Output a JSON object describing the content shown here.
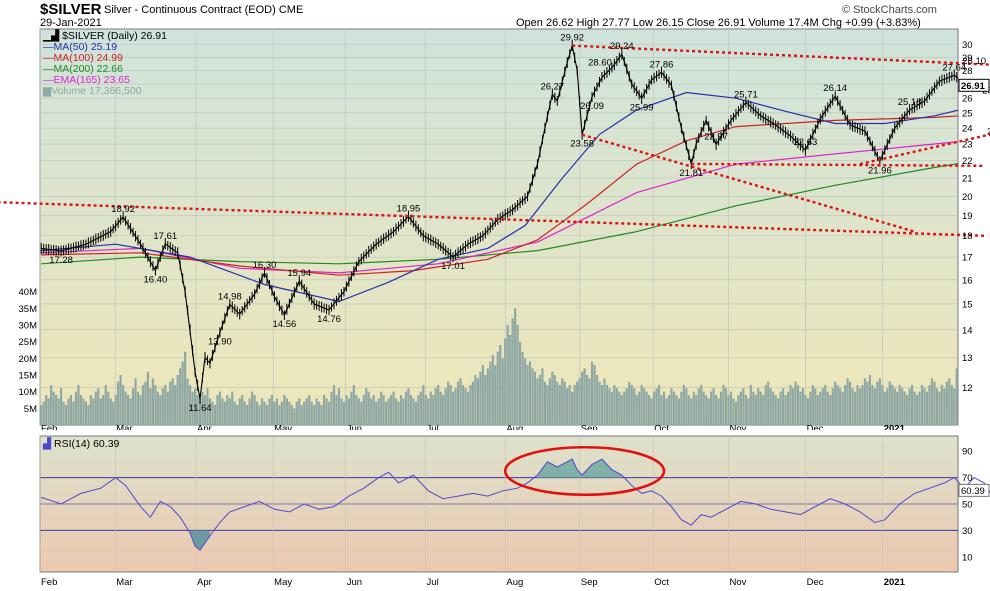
{
  "header": {
    "symbol": "$SILVER",
    "title": "Silver - Continuous Contract (EOD)",
    "exchange": "CME",
    "date": "29-Jan-2021",
    "quote": "Open 26.62  High 27.77  Low 26.15  Close 26.91  Volume 17.4M  Chg +0.99 (+3.83%)",
    "copyright": "© StockCharts.com"
  },
  "legend": {
    "price": "$SILVER (Daily) 26.91",
    "ma50": "MA(50) 25.19",
    "ma100": "MA(100) 24.99",
    "ma200": "MA(200) 22.66",
    "ema165": "EMA(165) 23.65",
    "volume": "Volume 17,366,500",
    "rsi": "RSI(14) 60.39"
  },
  "colors": {
    "price": "#000000",
    "ma50": "#2233aa",
    "ma100": "#cc2222",
    "ma200": "#228822",
    "ema165": "#dd22cc",
    "volume": "#8fa8a4",
    "rsi": "#4a4acc",
    "trendline": "#dd1111",
    "rsi_circle": "#e01010",
    "price_bg_top": "#cfe3db",
    "price_bg_bottom": "#efe6b8",
    "rsi_bg_top": "#dde2cc",
    "rsi_bg_bottom": "#ecc8b0"
  },
  "chart_data": {
    "type": "line",
    "x_labels": [
      "Feb",
      "Mar",
      "Apr",
      "May",
      "Jun",
      "Jul",
      "Aug",
      "Sep",
      "Oct",
      "Nov",
      "Dec",
      "2021"
    ],
    "y_ticks": [
      12,
      13,
      14,
      15,
      16,
      17,
      18,
      19,
      20,
      21,
      22,
      23,
      24,
      25,
      26,
      27,
      28,
      29,
      30
    ],
    "ylim": [
      11,
      30.7
    ],
    "volume_ticks": [
      "5M",
      "10M",
      "15M",
      "20M",
      "25M",
      "30M",
      "35M",
      "40M"
    ],
    "volume_max": 45,
    "price_points": [
      [
        0,
        17.4
      ],
      [
        8,
        17.28
      ],
      [
        18,
        17.6
      ],
      [
        28,
        18.2
      ],
      [
        33,
        18.92
      ],
      [
        40,
        17.6
      ],
      [
        46,
        16.4
      ],
      [
        50,
        17.61
      ],
      [
        55,
        17.2
      ],
      [
        58,
        15.5
      ],
      [
        62,
        12.5
      ],
      [
        64,
        11.64
      ],
      [
        66,
        13.0
      ],
      [
        68,
        12.8
      ],
      [
        72,
        13.9
      ],
      [
        76,
        14.98
      ],
      [
        80,
        14.6
      ],
      [
        86,
        15.4
      ],
      [
        90,
        16.3
      ],
      [
        94,
        15.3
      ],
      [
        98,
        14.56
      ],
      [
        104,
        15.94
      ],
      [
        110,
        15.0
      ],
      [
        116,
        14.76
      ],
      [
        122,
        15.5
      ],
      [
        128,
        16.8
      ],
      [
        135,
        17.6
      ],
      [
        142,
        18.2
      ],
      [
        148,
        18.95
      ],
      [
        154,
        18.0
      ],
      [
        160,
        17.6
      ],
      [
        166,
        17.01
      ],
      [
        172,
        17.6
      ],
      [
        178,
        18.0
      ],
      [
        184,
        18.8
      ],
      [
        190,
        19.3
      ],
      [
        196,
        20.0
      ],
      [
        200,
        21.8
      ],
      [
        203,
        24.0
      ],
      [
        206,
        26.27
      ],
      [
        208,
        25.8
      ],
      [
        212,
        28.6
      ],
      [
        214,
        29.92
      ],
      [
        216,
        28.0
      ],
      [
        218,
        23.58
      ],
      [
        222,
        26.09
      ],
      [
        226,
        27.5
      ],
      [
        230,
        28.2
      ],
      [
        234,
        29.24
      ],
      [
        238,
        27.0
      ],
      [
        242,
        25.99
      ],
      [
        246,
        27.3
      ],
      [
        250,
        27.86
      ],
      [
        254,
        26.9
      ],
      [
        258,
        24.0
      ],
      [
        262,
        21.81
      ],
      [
        264,
        23.0
      ],
      [
        268,
        24.5
      ],
      [
        272,
        22.97
      ],
      [
        278,
        24.5
      ],
      [
        284,
        25.71
      ],
      [
        290,
        24.8
      ],
      [
        296,
        24.2
      ],
      [
        302,
        23.5
      ],
      [
        308,
        22.63
      ],
      [
        314,
        24.6
      ],
      [
        320,
        26.14
      ],
      [
        326,
        24.2
      ],
      [
        332,
        23.8
      ],
      [
        338,
        21.96
      ],
      [
        344,
        24.0
      ],
      [
        350,
        25.18
      ],
      [
        356,
        25.8
      ],
      [
        362,
        27.2
      ],
      [
        368,
        27.64
      ],
      [
        372,
        27.1
      ],
      [
        376,
        28.1
      ],
      [
        380,
        27.6
      ],
      [
        384,
        25.99
      ],
      [
        386,
        24.36
      ],
      [
        390,
        25.6
      ],
      [
        396,
        25.1
      ],
      [
        400,
        25.9
      ],
      [
        404,
        26.91
      ]
    ],
    "price_labels": [
      {
        "i": 8,
        "v": 17.28,
        "text": "17.28",
        "pos": "below"
      },
      {
        "i": 33,
        "v": 18.92,
        "text": "18.92",
        "pos": "above"
      },
      {
        "i": 46,
        "v": 16.4,
        "text": "16.40",
        "pos": "below"
      },
      {
        "i": 50,
        "v": 17.61,
        "text": "17.61",
        "pos": "above"
      },
      {
        "i": 64,
        "v": 11.64,
        "text": "11.64",
        "pos": "below"
      },
      {
        "i": 72,
        "v": 13.9,
        "text": "13.90",
        "pos": "below"
      },
      {
        "i": 76,
        "v": 14.98,
        "text": "14.98",
        "pos": "above"
      },
      {
        "i": 90,
        "v": 16.3,
        "text": "16.30",
        "pos": "above"
      },
      {
        "i": 98,
        "v": 14.56,
        "text": "14.56",
        "pos": "below"
      },
      {
        "i": 104,
        "v": 15.94,
        "text": "15.94",
        "pos": "above"
      },
      {
        "i": 116,
        "v": 14.76,
        "text": "14.76",
        "pos": "below"
      },
      {
        "i": 148,
        "v": 18.95,
        "text": "18.95",
        "pos": "above"
      },
      {
        "i": 166,
        "v": 17.01,
        "text": "17.01",
        "pos": "below"
      },
      {
        "i": 206,
        "v": 26.27,
        "text": "26.27",
        "pos": "above"
      },
      {
        "i": 214,
        "v": 29.92,
        "text": "29.92",
        "pos": "above"
      },
      {
        "i": 218,
        "v": 28.6,
        "text": "28.60",
        "pos": "right"
      },
      {
        "i": 218,
        "v": 23.58,
        "text": "23.58",
        "pos": "below"
      },
      {
        "i": 222,
        "v": 26.09,
        "text": "26.09",
        "pos": "below"
      },
      {
        "i": 234,
        "v": 29.24,
        "text": "29.24",
        "pos": "above"
      },
      {
        "i": 242,
        "v": 25.99,
        "text": "25.99",
        "pos": "below"
      },
      {
        "i": 250,
        "v": 27.86,
        "text": "27.86",
        "pos": "above"
      },
      {
        "i": 262,
        "v": 21.81,
        "text": "21.81",
        "pos": "below"
      },
      {
        "i": 272,
        "v": 22.97,
        "text": "22.97",
        "pos": "above"
      },
      {
        "i": 284,
        "v": 25.71,
        "text": "25.71",
        "pos": "above"
      },
      {
        "i": 308,
        "v": 22.63,
        "text": "22.63",
        "pos": "above"
      },
      {
        "i": 320,
        "v": 26.14,
        "text": "26.14",
        "pos": "above"
      },
      {
        "i": 338,
        "v": 21.96,
        "text": "21.96",
        "pos": "below"
      },
      {
        "i": 350,
        "v": 25.18,
        "text": "25.18",
        "pos": "above"
      },
      {
        "i": 368,
        "v": 27.64,
        "text": "27.64",
        "pos": "above"
      },
      {
        "i": 376,
        "v": 28.1,
        "text": "28.10",
        "pos": "above"
      },
      {
        "i": 384,
        "v": 25.99,
        "text": "25.99",
        "pos": "above"
      },
      {
        "i": 386,
        "v": 24.36,
        "text": "24.36",
        "pos": "below"
      }
    ],
    "ma50_points": [
      [
        0,
        17.3
      ],
      [
        30,
        17.6
      ],
      [
        60,
        17.0
      ],
      [
        90,
        15.8
      ],
      [
        120,
        15.1
      ],
      [
        140,
        15.9
      ],
      [
        160,
        16.9
      ],
      [
        180,
        17.4
      ],
      [
        195,
        18.5
      ],
      [
        210,
        21.0
      ],
      [
        225,
        23.6
      ],
      [
        240,
        25.2
      ],
      [
        260,
        26.4
      ],
      [
        280,
        26.0
      ],
      [
        300,
        25.1
      ],
      [
        320,
        24.3
      ],
      [
        340,
        24.3
      ],
      [
        360,
        24.8
      ],
      [
        380,
        25.6
      ],
      [
        404,
        25.19
      ]
    ],
    "ma100_points": [
      [
        0,
        17.1
      ],
      [
        40,
        17.2
      ],
      [
        80,
        16.6
      ],
      [
        120,
        16.2
      ],
      [
        150,
        16.4
      ],
      [
        180,
        16.9
      ],
      [
        200,
        17.8
      ],
      [
        220,
        19.6
      ],
      [
        240,
        21.8
      ],
      [
        260,
        23.2
      ],
      [
        280,
        24.1
      ],
      [
        300,
        24.3
      ],
      [
        320,
        24.5
      ],
      [
        340,
        24.6
      ],
      [
        360,
        24.7
      ],
      [
        380,
        24.9
      ],
      [
        404,
        24.99
      ]
    ],
    "ma200_points": [
      [
        0,
        16.7
      ],
      [
        40,
        17.0
      ],
      [
        80,
        16.8
      ],
      [
        120,
        16.7
      ],
      [
        160,
        16.9
      ],
      [
        200,
        17.3
      ],
      [
        240,
        18.2
      ],
      [
        280,
        19.5
      ],
      [
        320,
        20.6
      ],
      [
        360,
        21.6
      ],
      [
        404,
        22.66
      ]
    ],
    "ema165_points": [
      [
        0,
        17.2
      ],
      [
        40,
        17.4
      ],
      [
        80,
        16.5
      ],
      [
        120,
        16.3
      ],
      [
        160,
        16.7
      ],
      [
        200,
        17.7
      ],
      [
        240,
        20.2
      ],
      [
        280,
        21.8
      ],
      [
        320,
        22.4
      ],
      [
        360,
        23.0
      ],
      [
        404,
        23.65
      ]
    ],
    "volume_values": [
      6,
      7,
      9,
      8,
      12,
      10,
      9,
      8,
      11,
      7,
      6,
      8,
      9,
      7,
      10,
      12,
      9,
      8,
      7,
      6,
      9,
      8,
      10,
      11,
      8,
      9,
      12,
      10,
      8,
      7,
      9,
      13,
      15,
      12,
      10,
      9,
      8,
      11,
      14,
      10,
      9,
      12,
      13,
      16,
      11,
      14,
      12,
      10,
      9,
      11,
      12,
      10,
      13,
      14,
      12,
      15,
      17,
      19,
      22,
      14,
      12,
      10,
      11,
      9,
      8,
      10,
      9,
      11,
      8,
      7,
      6,
      9,
      10,
      8,
      7,
      9,
      8,
      10,
      7,
      6,
      8,
      9,
      7,
      6,
      8,
      10,
      9,
      7,
      6,
      8,
      7,
      6,
      8,
      9,
      7,
      8,
      6,
      7,
      9,
      8,
      7,
      6,
      5,
      7,
      8,
      6,
      7,
      8,
      9,
      7,
      6,
      8,
      7,
      6,
      9,
      8,
      7,
      10,
      12,
      9,
      11,
      8,
      7,
      9,
      8,
      10,
      12,
      9,
      8,
      7,
      9,
      11,
      10,
      8,
      9,
      7,
      8,
      10,
      9,
      7,
      8,
      9,
      10,
      8,
      7,
      9,
      8,
      10,
      11,
      9,
      8,
      7,
      9,
      10,
      12,
      9,
      8,
      10,
      9,
      11,
      12,
      10,
      9,
      11,
      13,
      12,
      10,
      11,
      13,
      14,
      12,
      11,
      10,
      12,
      13,
      15,
      14,
      16,
      18,
      15,
      17,
      19,
      21,
      18,
      22,
      24,
      20,
      26,
      30,
      27,
      32,
      35,
      30,
      25,
      22,
      20,
      18,
      19,
      17,
      16,
      14,
      15,
      17,
      13,
      12,
      14,
      16,
      15,
      13,
      12,
      14,
      13,
      11,
      12,
      10,
      12,
      13,
      14,
      16,
      17,
      15,
      14,
      19,
      18,
      15,
      13,
      12,
      14,
      12,
      11,
      10,
      12,
      11,
      10,
      9,
      10,
      11,
      13,
      12,
      11,
      9,
      10,
      12,
      11,
      10,
      9,
      8,
      10,
      11,
      12,
      9,
      10,
      8,
      9,
      11,
      10,
      9,
      8,
      10,
      12,
      11,
      9,
      8,
      10,
      9,
      11,
      12,
      10,
      9,
      8,
      10,
      11,
      9,
      8,
      10,
      12,
      11,
      9,
      10,
      8,
      7,
      9,
      10,
      11,
      9,
      8,
      12,
      10,
      9,
      11,
      10,
      9,
      12,
      13,
      11,
      10,
      9,
      8,
      10,
      11,
      9,
      10,
      12,
      11,
      13,
      12,
      10,
      11,
      9,
      8,
      10,
      12,
      11,
      9,
      10,
      11,
      12,
      10,
      9,
      11,
      13,
      12,
      11,
      10,
      12,
      14,
      13,
      11,
      10,
      12,
      11,
      12,
      14,
      13,
      15,
      12,
      11,
      13,
      14,
      12,
      10,
      11,
      13,
      12,
      11,
      10,
      12,
      11,
      10,
      9,
      11,
      12,
      10,
      9,
      10,
      12,
      11,
      10,
      12,
      14,
      13,
      11,
      10,
      12,
      11,
      13,
      14,
      12,
      11,
      17
    ],
    "trendlines": [
      {
        "name": "upper-resistance",
        "from": [
          214,
          29.92
        ],
        "to": [
          410,
          28.2
        ]
      },
      {
        "name": "lower-falling",
        "from": [
          218,
          23.58
        ],
        "to": [
          352,
          18.2
        ]
      },
      {
        "name": "rising-support",
        "from": [
          330,
          21.8
        ],
        "to": [
          410,
          24.6
        ]
      },
      {
        "name": "horizontal-support",
        "from": [
          262,
          21.81
        ],
        "to": [
          380,
          21.7
        ]
      },
      {
        "name": "long-falling",
        "from": [
          -20,
          19.7
        ],
        "to": [
          380,
          18.0
        ]
      }
    ],
    "rsi_ticks": [
      10,
      30,
      50,
      70,
      90
    ],
    "rsi_lines": [
      30,
      50,
      70
    ],
    "rsi_last": "60.39",
    "rsi_points": [
      [
        0,
        55
      ],
      [
        8,
        50
      ],
      [
        16,
        58
      ],
      [
        24,
        62
      ],
      [
        30,
        70
      ],
      [
        34,
        64
      ],
      [
        40,
        48
      ],
      [
        44,
        40
      ],
      [
        48,
        52
      ],
      [
        52,
        48
      ],
      [
        56,
        40
      ],
      [
        60,
        28
      ],
      [
        62,
        18
      ],
      [
        64,
        15
      ],
      [
        68,
        26
      ],
      [
        72,
        36
      ],
      [
        76,
        44
      ],
      [
        82,
        48
      ],
      [
        88,
        52
      ],
      [
        94,
        46
      ],
      [
        100,
        44
      ],
      [
        106,
        50
      ],
      [
        112,
        46
      ],
      [
        118,
        48
      ],
      [
        124,
        56
      ],
      [
        130,
        62
      ],
      [
        136,
        70
      ],
      [
        140,
        74
      ],
      [
        144,
        66
      ],
      [
        150,
        72
      ],
      [
        156,
        60
      ],
      [
        162,
        54
      ],
      [
        168,
        56
      ],
      [
        174,
        58
      ],
      [
        180,
        56
      ],
      [
        186,
        60
      ],
      [
        192,
        62
      ],
      [
        196,
        66
      ],
      [
        200,
        72
      ],
      [
        204,
        82
      ],
      [
        208,
        78
      ],
      [
        212,
        82
      ],
      [
        214,
        84
      ],
      [
        216,
        76
      ],
      [
        218,
        72
      ],
      [
        222,
        80
      ],
      [
        226,
        84
      ],
      [
        230,
        76
      ],
      [
        234,
        72
      ],
      [
        238,
        64
      ],
      [
        242,
        58
      ],
      [
        246,
        60
      ],
      [
        250,
        56
      ],
      [
        254,
        48
      ],
      [
        258,
        38
      ],
      [
        262,
        34
      ],
      [
        266,
        42
      ],
      [
        270,
        40
      ],
      [
        276,
        46
      ],
      [
        282,
        52
      ],
      [
        288,
        50
      ],
      [
        294,
        46
      ],
      [
        300,
        44
      ],
      [
        306,
        42
      ],
      [
        312,
        48
      ],
      [
        318,
        54
      ],
      [
        324,
        50
      ],
      [
        330,
        44
      ],
      [
        336,
        36
      ],
      [
        340,
        38
      ],
      [
        346,
        50
      ],
      [
        352,
        58
      ],
      [
        358,
        62
      ],
      [
        364,
        66
      ],
      [
        368,
        70
      ],
      [
        372,
        62
      ],
      [
        376,
        70
      ],
      [
        380,
        66
      ],
      [
        384,
        54
      ],
      [
        386,
        44
      ],
      [
        390,
        52
      ],
      [
        396,
        50
      ],
      [
        400,
        54
      ],
      [
        404,
        60.39
      ]
    ],
    "rsi_ellipse": {
      "center_i": 219,
      "center_v": 75,
      "rx_bars": 32,
      "ry_rsi": 18
    }
  }
}
